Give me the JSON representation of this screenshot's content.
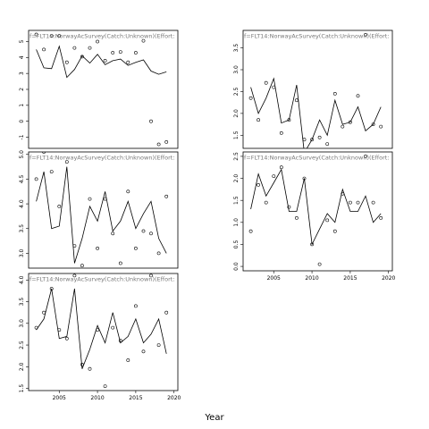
{
  "figure": {
    "xlabel": "Year",
    "ylabel": ""
  },
  "chart_data": [
    {
      "type": "line",
      "title": "f=FLT14:NorwayAcSurvey(Catch:Unknown)(Effort:",
      "xlim": [
        2001,
        2020.5
      ],
      "ylim": [
        -1.7,
        5.7
      ],
      "yticks": [
        -1,
        0,
        1,
        2,
        3,
        4,
        5
      ],
      "xticks": [],
      "series": [
        {
          "kind": "line",
          "x": [
            2002,
            2003,
            2004,
            2005,
            2006,
            2007,
            2008,
            2009,
            2010,
            2011,
            2012,
            2013,
            2014,
            2015,
            2016,
            2017,
            2018,
            2019
          ],
          "y": [
            4.5,
            3.35,
            3.3,
            4.7,
            2.75,
            3.25,
            4.1,
            3.65,
            4.2,
            3.55,
            3.8,
            3.9,
            3.5,
            3.7,
            3.85,
            3.15,
            2.95,
            3.1
          ]
        },
        {
          "kind": "points",
          "x": [
            2002,
            2003,
            2004,
            2005,
            2006,
            2007,
            2008,
            2009,
            2010,
            2011,
            2012,
            2013,
            2014,
            2015,
            2016,
            2017,
            2018,
            2019
          ],
          "y": [
            5.45,
            4.5,
            5.35,
            5.35,
            3.7,
            4.6,
            4.05,
            4.6,
            5.0,
            3.8,
            4.3,
            4.35,
            3.7,
            4.3,
            5.05,
            0.0,
            -1.45,
            -1.3
          ]
        }
      ]
    },
    {
      "type": "line",
      "title": "f=FLT14:NorwayAcSurvey(Catch:Unknown)(Effort:",
      "xlim": [
        2001,
        2020.5
      ],
      "ylim": [
        1.2,
        3.9
      ],
      "yticks": [
        1.5,
        2.0,
        2.5,
        3.0,
        3.5
      ],
      "xticks": [],
      "series": [
        {
          "kind": "line",
          "x": [
            2002,
            2003,
            2004,
            2005,
            2006,
            2007,
            2008,
            2009,
            2010,
            2011,
            2012,
            2013,
            2014,
            2015,
            2016,
            2017,
            2018,
            2019
          ],
          "y": [
            2.6,
            2.0,
            2.35,
            2.8,
            1.78,
            1.85,
            2.65,
            1.1,
            1.4,
            1.85,
            1.5,
            2.3,
            1.75,
            1.8,
            2.15,
            1.6,
            1.75,
            2.15
          ]
        },
        {
          "kind": "points",
          "x": [
            2002,
            2003,
            2004,
            2005,
            2006,
            2007,
            2008,
            2009,
            2010,
            2011,
            2012,
            2013,
            2014,
            2015,
            2016,
            2017,
            2018,
            2019
          ],
          "y": [
            2.35,
            1.85,
            2.7,
            2.6,
            1.55,
            1.85,
            2.3,
            1.4,
            1.4,
            1.45,
            1.3,
            2.45,
            1.7,
            1.8,
            2.4,
            3.8,
            1.75,
            1.7
          ]
        }
      ]
    },
    {
      "type": "line",
      "title": "f=FLT14:NorwayAcSurvey(Catch:Unknown)(Effort:",
      "xlim": [
        2001,
        2020.5
      ],
      "ylim": [
        2.7,
        5.05
      ],
      "yticks": [
        3.0,
        3.5,
        4.0,
        4.5,
        5.0
      ],
      "xticks": [],
      "series": [
        {
          "kind": "line",
          "x": [
            2002,
            2003,
            2004,
            2005,
            2006,
            2007,
            2008,
            2009,
            2010,
            2011,
            2012,
            2013,
            2014,
            2015,
            2016,
            2017,
            2018,
            2019
          ],
          "y": [
            4.05,
            4.65,
            3.5,
            3.55,
            4.75,
            2.8,
            3.3,
            3.95,
            3.65,
            4.25,
            3.45,
            3.65,
            4.05,
            3.5,
            3.8,
            4.05,
            3.3,
            3.0
          ]
        },
        {
          "kind": "points",
          "x": [
            2002,
            2003,
            2004,
            2005,
            2006,
            2007,
            2008,
            2009,
            2010,
            2011,
            2012,
            2013,
            2014,
            2015,
            2016,
            2017,
            2018,
            2019
          ],
          "y": [
            4.5,
            5.05,
            4.65,
            3.95,
            4.85,
            3.15,
            2.75,
            4.1,
            3.1,
            4.1,
            3.4,
            2.8,
            4.25,
            3.1,
            3.45,
            3.4,
            3.0,
            4.15
          ]
        }
      ]
    },
    {
      "type": "line",
      "title": "f=FLT14:NorwayAcSurvey(Catch:Unknown)(Effort:",
      "xlim": [
        2001,
        2020.5
      ],
      "ylim": [
        -0.1,
        2.6
      ],
      "yticks": [
        0.0,
        0.5,
        1.0,
        1.5,
        2.0,
        2.5
      ],
      "xticks": [
        2005,
        2010,
        2015,
        2020
      ],
      "series": [
        {
          "kind": "line",
          "x": [
            2002,
            2003,
            2004,
            2005,
            2006,
            2007,
            2008,
            2009,
            2010,
            2011,
            2012,
            2013,
            2014,
            2015,
            2016,
            2017,
            2018,
            2019
          ],
          "y": [
            1.3,
            2.1,
            1.6,
            1.9,
            2.2,
            1.25,
            1.25,
            2.0,
            0.5,
            0.85,
            1.2,
            1.0,
            1.75,
            1.25,
            1.25,
            1.6,
            1.0,
            1.2
          ]
        },
        {
          "kind": "points",
          "x": [
            2002,
            2003,
            2004,
            2005,
            2006,
            2007,
            2008,
            2009,
            2010,
            2011,
            2012,
            2013,
            2014,
            2015,
            2016,
            2017,
            2018,
            2019
          ],
          "y": [
            0.8,
            1.85,
            1.45,
            2.05,
            2.25,
            1.35,
            1.1,
            2.0,
            0.5,
            0.05,
            1.05,
            0.8,
            1.65,
            1.45,
            1.45,
            2.5,
            1.45,
            1.1
          ]
        }
      ]
    },
    {
      "type": "line",
      "title": "f=FLT14:NorwayAcSurvey(Catch:Unknown)(Effort:",
      "xlim": [
        2001,
        2020.5
      ],
      "ylim": [
        1.45,
        4.15
      ],
      "yticks": [
        1.5,
        2.0,
        2.5,
        3.0,
        3.5,
        4.0
      ],
      "xticks": [
        2005,
        2010,
        2015,
        2020
      ],
      "series": [
        {
          "kind": "line",
          "x": [
            2002,
            2003,
            2004,
            2005,
            2006,
            2007,
            2008,
            2009,
            2010,
            2011,
            2012,
            2013,
            2014,
            2015,
            2016,
            2017,
            2018,
            2019
          ],
          "y": [
            2.85,
            3.1,
            3.8,
            2.65,
            2.7,
            3.8,
            1.95,
            2.4,
            2.95,
            2.55,
            3.25,
            2.55,
            2.7,
            3.1,
            2.55,
            2.75,
            3.1,
            2.3
          ]
        },
        {
          "kind": "points",
          "x": [
            2002,
            2003,
            2004,
            2005,
            2006,
            2007,
            2008,
            2009,
            2010,
            2011,
            2012,
            2013,
            2014,
            2015,
            2016,
            2017,
            2018,
            2019
          ],
          "y": [
            2.9,
            3.25,
            3.8,
            2.85,
            2.65,
            4.1,
            2.05,
            1.95,
            2.85,
            1.55,
            2.9,
            2.6,
            2.15,
            3.4,
            2.35,
            4.1,
            2.5,
            3.25
          ]
        }
      ]
    }
  ]
}
